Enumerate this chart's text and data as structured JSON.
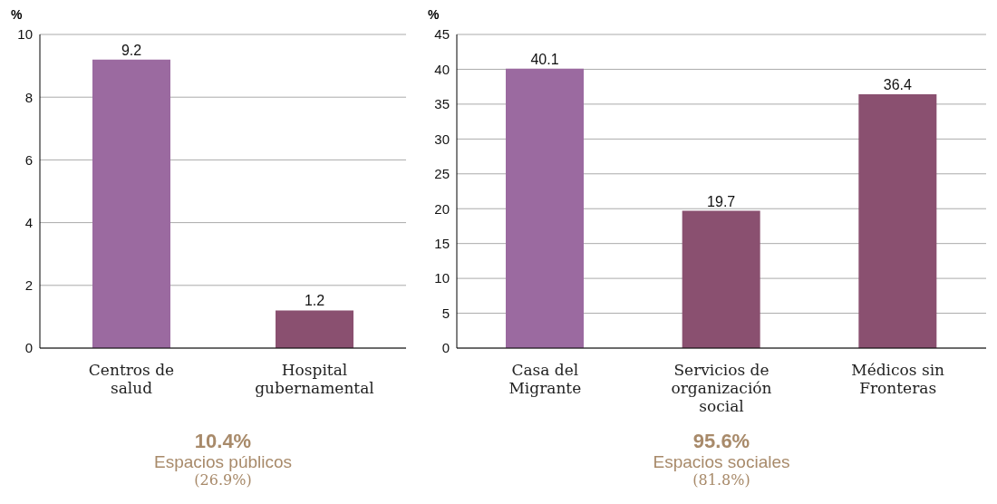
{
  "chart_data": [
    {
      "type": "bar",
      "ylabel": "%",
      "categories": [
        "Centros de salud",
        "Hospital gubernamental"
      ],
      "values": [
        9.2,
        1.2
      ],
      "colors": [
        "#9b6aa0",
        "#8a5070"
      ],
      "ylim": [
        0,
        10
      ],
      "yticks": [
        0,
        2,
        4,
        6,
        8,
        10
      ],
      "grid": "y",
      "data_labels": true,
      "annotations": [
        "10.4%",
        "Espacios públicos",
        "(26.9%)"
      ]
    },
    {
      "type": "bar",
      "ylabel": "%",
      "categories": [
        "Casa del Migrante",
        "Servicios de organización social",
        "Médicos sin Fronteras"
      ],
      "values": [
        40.1,
        19.7,
        36.4
      ],
      "colors": [
        "#9b6aa0",
        "#8a5070",
        "#8a5070"
      ],
      "ylim": [
        0,
        45
      ],
      "yticks": [
        0,
        5,
        10,
        15,
        20,
        25,
        30,
        35,
        40,
        45
      ],
      "grid": "y",
      "data_labels": true,
      "annotations": [
        "95.6%",
        "Espacios sociales",
        "(81.8%)"
      ]
    }
  ]
}
